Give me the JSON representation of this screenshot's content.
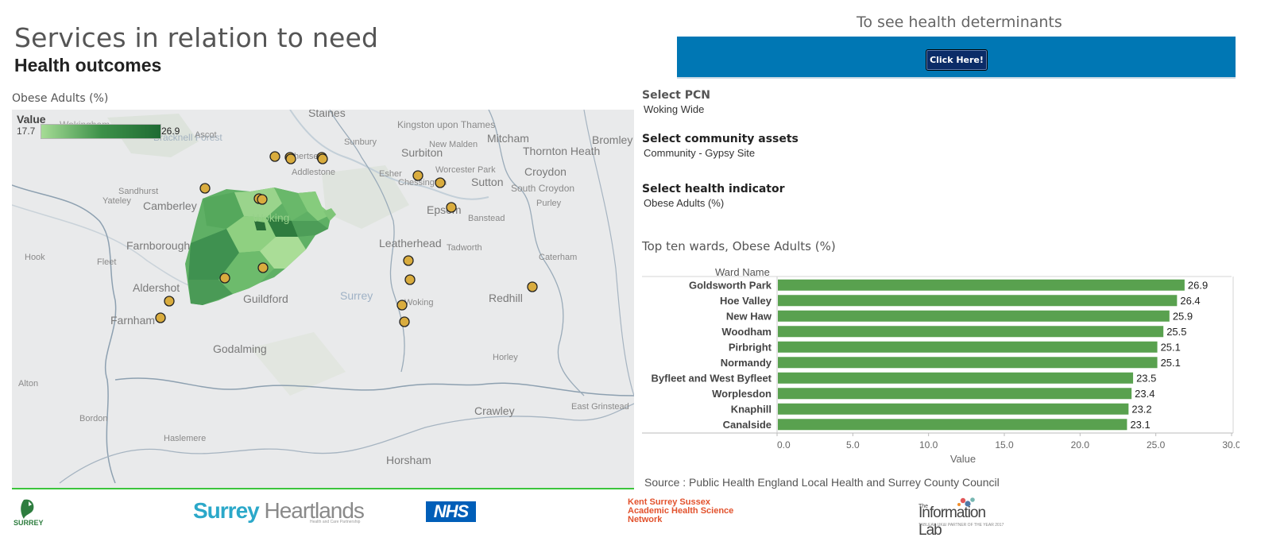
{
  "header": {
    "title": "Services in relation to need",
    "subtitle": "Health outcomes"
  },
  "map": {
    "title": "Obese Adults (%)",
    "legend": {
      "title": "Value",
      "min": "17.7",
      "max": "26.9",
      "colors": [
        "#a6dc96",
        "#1f6b33"
      ]
    },
    "places": [
      "Staines",
      "Wokingham",
      "Bracknell Forest",
      "Ascot",
      "Sunbury",
      "Kingston upon Thames",
      "New Malden",
      "Mitcham",
      "Bromley",
      "Thornton Heath",
      "Surbiton",
      "Addlestone",
      "Worcester Park",
      "Croydon",
      "Esher",
      "Chessington",
      "Sutton",
      "South Croydon",
      "Sandhurst",
      "Yateley",
      "Camberley",
      "Purley",
      "Epsom",
      "Banstead",
      "Woking",
      "Leatherhead",
      "Tadworth",
      "Farnborough",
      "Hook",
      "Fleet",
      "Caterham",
      "Aldershot",
      "Guildford",
      "Surrey",
      "Redhill",
      "Farnham",
      "Godalming",
      "Horley",
      "Alton",
      "Crawley",
      "East Grinstead",
      "Bordon",
      "Haslemere",
      "Horsham",
      "Chertsey",
      "Woking"
    ],
    "asset_marker_color": "#d9ac3e"
  },
  "determinants": {
    "title": "To see health determinants",
    "button_label": "Click Here!",
    "banner_color": "#0077b4"
  },
  "filters": {
    "pcn": {
      "label": "Select PCN",
      "value": "Woking Wide"
    },
    "assets": {
      "label": "Select community assets",
      "value": "Community - Gypsy Site"
    },
    "indicator": {
      "label": "Select health indicator",
      "value": "Obese Adults (%)"
    }
  },
  "chart_data": {
    "type": "bar",
    "orientation": "horizontal",
    "title": "Top ten wards, Obese Adults (%)",
    "category_header": "Ward Name",
    "xlabel": "Value",
    "categories": [
      "Goldsworth Park",
      "Hoe Valley",
      "New Haw",
      "Woodham",
      "Pirbright",
      "Normandy",
      "Byfleet and West Byfleet",
      "Worplesdon",
      "Knaphill",
      "Canalside"
    ],
    "values": [
      26.9,
      26.4,
      25.9,
      25.5,
      25.1,
      25.1,
      23.5,
      23.4,
      23.2,
      23.1
    ],
    "value_labels": [
      "26.9",
      "26.4",
      "25.9",
      "25.5",
      "25.1",
      "25.1",
      "23.5",
      "23.4",
      "23.2",
      "23.1"
    ],
    "xlim": [
      0,
      30
    ],
    "xticks": [
      "0.0",
      "5.0",
      "10.0",
      "15.0",
      "20.0",
      "25.0",
      "30.0"
    ],
    "bar_color": "#59a14f",
    "grid": false
  },
  "source": "Source : Public Health England Local Health and Surrey County Council",
  "logos": {
    "surrey": "SURREY",
    "heartlands_a": "Surrey",
    "heartlands_b": "Heartlands",
    "heartlands_sub": "Health and Care Partnership",
    "nhs": "NHS",
    "kss": [
      "Kent Surrey Sussex",
      "Academic Health Science",
      "Network"
    ],
    "infolab_the": "The",
    "infolab": "Information Lab",
    "infolab_sub": "TABLEAU UK&I PARTNER OF THE YEAR 2017"
  }
}
